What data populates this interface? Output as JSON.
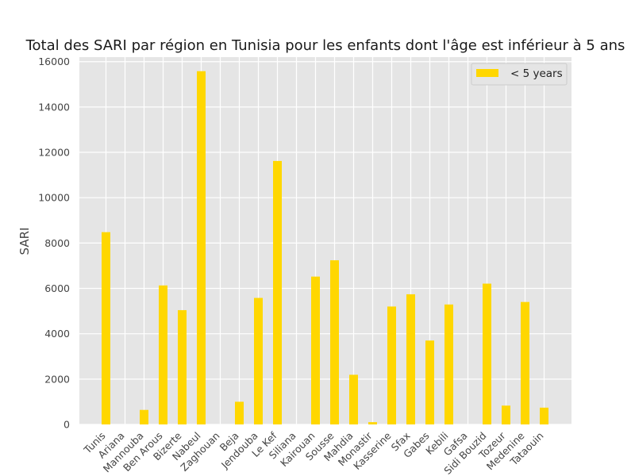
{
  "chart_data": {
    "type": "bar",
    "title": "Total des SARI par région en Tunisia pour les enfants dont l'âge est inférieur à 5 ans",
    "xlabel": "",
    "ylabel": "SARI",
    "categories": [
      "Tunis",
      "Ariana",
      "Mannouba",
      "Ben Arous",
      "Bizerte",
      "Nabeul",
      "Zaghouan",
      "Beja",
      "Jendouba",
      "Le Kef",
      "Siliana",
      "Kairouan",
      "Sousse",
      "Mahdia",
      "Monastir",
      "Kasserine",
      "Sfax",
      "Gabes",
      "Kebili",
      "Gafsa",
      "Sidi Bouzid",
      "Tozeur",
      "Medenine",
      "Tataouin"
    ],
    "series": [
      {
        "name": "< 5 years",
        "color": "#ffd700",
        "values": [
          8480,
          0,
          640,
          6130,
          5040,
          15580,
          0,
          1000,
          5580,
          11620,
          0,
          6520,
          7240,
          2190,
          100,
          5200,
          5740,
          3700,
          5290,
          0,
          6210,
          830,
          5400,
          740
        ]
      }
    ],
    "ylim": [
      0,
      16200
    ],
    "yticks": [
      0,
      2000,
      4000,
      6000,
      8000,
      10000,
      12000,
      14000,
      16000
    ],
    "grid": true,
    "legend_position": "upper-right"
  }
}
